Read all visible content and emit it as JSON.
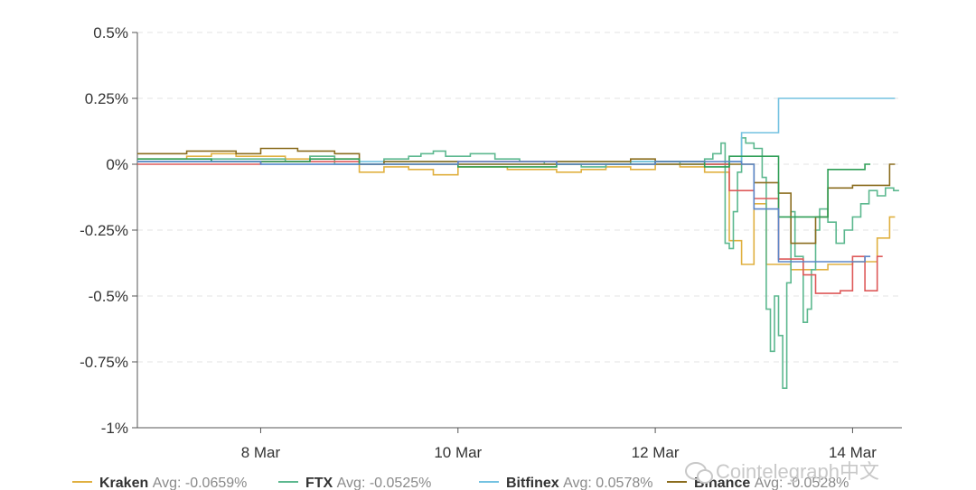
{
  "chart_data": {
    "type": "line",
    "title": "",
    "xlabel": "",
    "ylabel": "",
    "ylim": [
      -1.0,
      0.5
    ],
    "xlim": [
      "2021-03-06T18:00",
      "2021-03-14T12:00"
    ],
    "y_ticks": [
      0.5,
      0.25,
      0,
      -0.25,
      -0.5,
      -0.75,
      -1.0
    ],
    "y_tick_labels": [
      "0.5%",
      "0.25%",
      "0%",
      "-0.25%",
      "-0.5%",
      "-0.75%",
      "-1%"
    ],
    "x_ticks": [
      "2021-03-08T00:00",
      "2021-03-10T00:00",
      "2021-03-12T00:00",
      "2021-03-14T00:00"
    ],
    "x_tick_labels": [
      "8 Mar",
      "10 Mar",
      "12 Mar",
      "14 Mar"
    ],
    "grid": "horizontal dashed",
    "legend_position": "bottom",
    "series": [
      {
        "name": "Kraken",
        "avg_label": "Avg: -0.0659%",
        "color": "#e0b040",
        "step": true,
        "points": [
          [
            "2021-03-06T18:00",
            0.02
          ],
          [
            "2021-03-07T06:00",
            0.03
          ],
          [
            "2021-03-07T12:00",
            0.04
          ],
          [
            "2021-03-07T18:00",
            0.03
          ],
          [
            "2021-03-08T06:00",
            0.02
          ],
          [
            "2021-03-08T12:00",
            0.03
          ],
          [
            "2021-03-08T18:00",
            0.02
          ],
          [
            "2021-03-09T00:00",
            -0.03
          ],
          [
            "2021-03-09T06:00",
            -0.01
          ],
          [
            "2021-03-09T12:00",
            -0.02
          ],
          [
            "2021-03-09T18:00",
            -0.04
          ],
          [
            "2021-03-10T00:00",
            -0.01
          ],
          [
            "2021-03-10T12:00",
            -0.02
          ],
          [
            "2021-03-11T00:00",
            -0.03
          ],
          [
            "2021-03-11T06:00",
            -0.02
          ],
          [
            "2021-03-11T12:00",
            -0.01
          ],
          [
            "2021-03-11T18:00",
            -0.02
          ],
          [
            "2021-03-12T00:00",
            0.0
          ],
          [
            "2021-03-12T06:00",
            -0.01
          ],
          [
            "2021-03-12T12:00",
            -0.03
          ],
          [
            "2021-03-12T18:00",
            -0.29
          ],
          [
            "2021-03-12T21:00",
            -0.38
          ],
          [
            "2021-03-13T00:00",
            -0.15
          ],
          [
            "2021-03-13T03:00",
            -0.38
          ],
          [
            "2021-03-13T09:00",
            -0.4
          ],
          [
            "2021-03-13T18:00",
            -0.38
          ],
          [
            "2021-03-14T00:00",
            -0.37
          ],
          [
            "2021-03-14T06:00",
            -0.28
          ],
          [
            "2021-03-14T09:00",
            -0.2
          ]
        ]
      },
      {
        "name": "FTX",
        "avg_label": "Avg: -0.0525%",
        "color": "#5cb88f",
        "step": true,
        "points": [
          [
            "2021-03-06T18:00",
            0.01
          ],
          [
            "2021-03-07T12:00",
            0.02
          ],
          [
            "2021-03-08T06:00",
            0.01
          ],
          [
            "2021-03-08T12:00",
            0.03
          ],
          [
            "2021-03-08T18:00",
            0.0
          ],
          [
            "2021-03-09T06:00",
            0.02
          ],
          [
            "2021-03-09T12:00",
            0.03
          ],
          [
            "2021-03-09T15:00",
            0.04
          ],
          [
            "2021-03-09T18:00",
            0.05
          ],
          [
            "2021-03-09T21:00",
            0.03
          ],
          [
            "2021-03-10T03:00",
            0.04
          ],
          [
            "2021-03-10T09:00",
            0.02
          ],
          [
            "2021-03-10T15:00",
            0.01
          ],
          [
            "2021-03-10T21:00",
            0.0
          ],
          [
            "2021-03-11T06:00",
            -0.01
          ],
          [
            "2021-03-11T12:00",
            0.0
          ],
          [
            "2021-03-11T18:00",
            0.01
          ],
          [
            "2021-03-12T06:00",
            0.0
          ],
          [
            "2021-03-12T12:00",
            0.02
          ],
          [
            "2021-03-12T14:00",
            0.04
          ],
          [
            "2021-03-12T16:00",
            0.08
          ],
          [
            "2021-03-12T17:00",
            -0.3
          ],
          [
            "2021-03-12T18:00",
            -0.32
          ],
          [
            "2021-03-12T19:00",
            -0.18
          ],
          [
            "2021-03-12T20:00",
            -0.03
          ],
          [
            "2021-03-12T21:00",
            0.1
          ],
          [
            "2021-03-12T22:00",
            0.08
          ],
          [
            "2021-03-13T00:00",
            0.06
          ],
          [
            "2021-03-13T02:00",
            -0.05
          ],
          [
            "2021-03-13T03:00",
            -0.55
          ],
          [
            "2021-03-13T04:00",
            -0.71
          ],
          [
            "2021-03-13T05:00",
            -0.5
          ],
          [
            "2021-03-13T06:00",
            -0.65
          ],
          [
            "2021-03-13T07:00",
            -0.85
          ],
          [
            "2021-03-13T08:00",
            -0.45
          ],
          [
            "2021-03-13T09:00",
            -0.18
          ],
          [
            "2021-03-13T10:00",
            -0.35
          ],
          [
            "2021-03-13T12:00",
            -0.6
          ],
          [
            "2021-03-13T13:00",
            -0.55
          ],
          [
            "2021-03-13T14:00",
            -0.4
          ],
          [
            "2021-03-13T15:00",
            -0.25
          ],
          [
            "2021-03-13T16:00",
            -0.17
          ],
          [
            "2021-03-13T18:00",
            -0.22
          ],
          [
            "2021-03-13T20:00",
            -0.3
          ],
          [
            "2021-03-13T22:00",
            -0.25
          ],
          [
            "2021-03-14T00:00",
            -0.2
          ],
          [
            "2021-03-14T02:00",
            -0.15
          ],
          [
            "2021-03-14T04:00",
            -0.1
          ],
          [
            "2021-03-14T06:00",
            -0.12
          ],
          [
            "2021-03-14T08:00",
            -0.09
          ],
          [
            "2021-03-14T10:00",
            -0.1
          ]
        ]
      },
      {
        "name": "Bitfinex",
        "avg_label": "Avg: 0.0578%",
        "color": "#74c2e1",
        "step": true,
        "points": [
          [
            "2021-03-06T18:00",
            0.01
          ],
          [
            "2021-03-08T00:00",
            0.0
          ],
          [
            "2021-03-09T00:00",
            0.01
          ],
          [
            "2021-03-10T00:00",
            0.0
          ],
          [
            "2021-03-11T00:00",
            0.01
          ],
          [
            "2021-03-12T00:00",
            0.0
          ],
          [
            "2021-03-12T18:00",
            0.01
          ],
          [
            "2021-03-12T21:00",
            0.12
          ],
          [
            "2021-03-13T06:00",
            0.25
          ],
          [
            "2021-03-14T09:00",
            0.25
          ]
        ]
      },
      {
        "name": "Binance",
        "avg_label": "Avg: -0.0528%",
        "color": "#8b6d1f",
        "step": true,
        "points": [
          [
            "2021-03-06T18:00",
            0.04
          ],
          [
            "2021-03-07T06:00",
            0.05
          ],
          [
            "2021-03-07T18:00",
            0.04
          ],
          [
            "2021-03-08T00:00",
            0.06
          ],
          [
            "2021-03-08T09:00",
            0.05
          ],
          [
            "2021-03-08T18:00",
            0.04
          ],
          [
            "2021-03-09T00:00",
            0.0
          ],
          [
            "2021-03-09T06:00",
            0.01
          ],
          [
            "2021-03-10T00:00",
            0.0
          ],
          [
            "2021-03-11T00:00",
            0.01
          ],
          [
            "2021-03-11T18:00",
            0.02
          ],
          [
            "2021-03-12T00:00",
            0.0
          ],
          [
            "2021-03-12T09:00",
            0.0
          ],
          [
            "2021-03-12T12:00",
            0.0
          ],
          [
            "2021-03-12T18:00",
            0.0
          ],
          [
            "2021-03-13T00:00",
            -0.07
          ],
          [
            "2021-03-13T06:00",
            -0.11
          ],
          [
            "2021-03-13T09:00",
            -0.3
          ],
          [
            "2021-03-13T15:00",
            -0.2
          ],
          [
            "2021-03-13T18:00",
            -0.09
          ],
          [
            "2021-03-14T00:00",
            -0.08
          ],
          [
            "2021-03-14T09:00",
            0.0
          ]
        ]
      },
      {
        "name": "",
        "avg_label": "",
        "color": "#de5a5a",
        "step": true,
        "points": [
          [
            "2021-03-06T18:00",
            0.0
          ],
          [
            "2021-03-08T00:00",
            0.01
          ],
          [
            "2021-03-09T00:00",
            0.0
          ],
          [
            "2021-03-10T00:00",
            0.01
          ],
          [
            "2021-03-11T00:00",
            0.0
          ],
          [
            "2021-03-12T00:00",
            0.01
          ],
          [
            "2021-03-12T12:00",
            0.0
          ],
          [
            "2021-03-12T18:00",
            -0.1
          ],
          [
            "2021-03-13T00:00",
            -0.13
          ],
          [
            "2021-03-13T06:00",
            -0.36
          ],
          [
            "2021-03-13T12:00",
            -0.42
          ],
          [
            "2021-03-13T15:00",
            -0.49
          ],
          [
            "2021-03-13T21:00",
            -0.48
          ],
          [
            "2021-03-14T00:00",
            -0.35
          ],
          [
            "2021-03-14T03:00",
            -0.48
          ],
          [
            "2021-03-14T06:00",
            -0.35
          ]
        ]
      },
      {
        "name": "",
        "avg_label": "",
        "color": "#2e9e56",
        "step": true,
        "points": [
          [
            "2021-03-06T18:00",
            0.02
          ],
          [
            "2021-03-07T12:00",
            0.01
          ],
          [
            "2021-03-08T12:00",
            0.02
          ],
          [
            "2021-03-09T00:00",
            0.0
          ],
          [
            "2021-03-10T00:00",
            -0.01
          ],
          [
            "2021-03-11T00:00",
            0.0
          ],
          [
            "2021-03-12T00:00",
            0.01
          ],
          [
            "2021-03-12T12:00",
            -0.01
          ],
          [
            "2021-03-12T18:00",
            0.03
          ],
          [
            "2021-03-13T06:00",
            -0.2
          ],
          [
            "2021-03-13T15:00",
            -0.2
          ],
          [
            "2021-03-13T18:00",
            -0.02
          ],
          [
            "2021-03-14T03:00",
            0.0
          ]
        ]
      },
      {
        "name": "",
        "avg_label": "",
        "color": "#5b86c8",
        "step": true,
        "points": [
          [
            "2021-03-06T18:00",
            0.01
          ],
          [
            "2021-03-08T00:00",
            0.0
          ],
          [
            "2021-03-10T00:00",
            0.01
          ],
          [
            "2021-03-11T00:00",
            0.0
          ],
          [
            "2021-03-12T00:00",
            0.01
          ],
          [
            "2021-03-12T21:00",
            0.0
          ],
          [
            "2021-03-13T00:00",
            -0.17
          ],
          [
            "2021-03-13T06:00",
            -0.37
          ],
          [
            "2021-03-13T18:00",
            -0.37
          ],
          [
            "2021-03-14T03:00",
            -0.35
          ]
        ]
      }
    ]
  },
  "watermark": {
    "text": "Cointelegraph中文"
  }
}
